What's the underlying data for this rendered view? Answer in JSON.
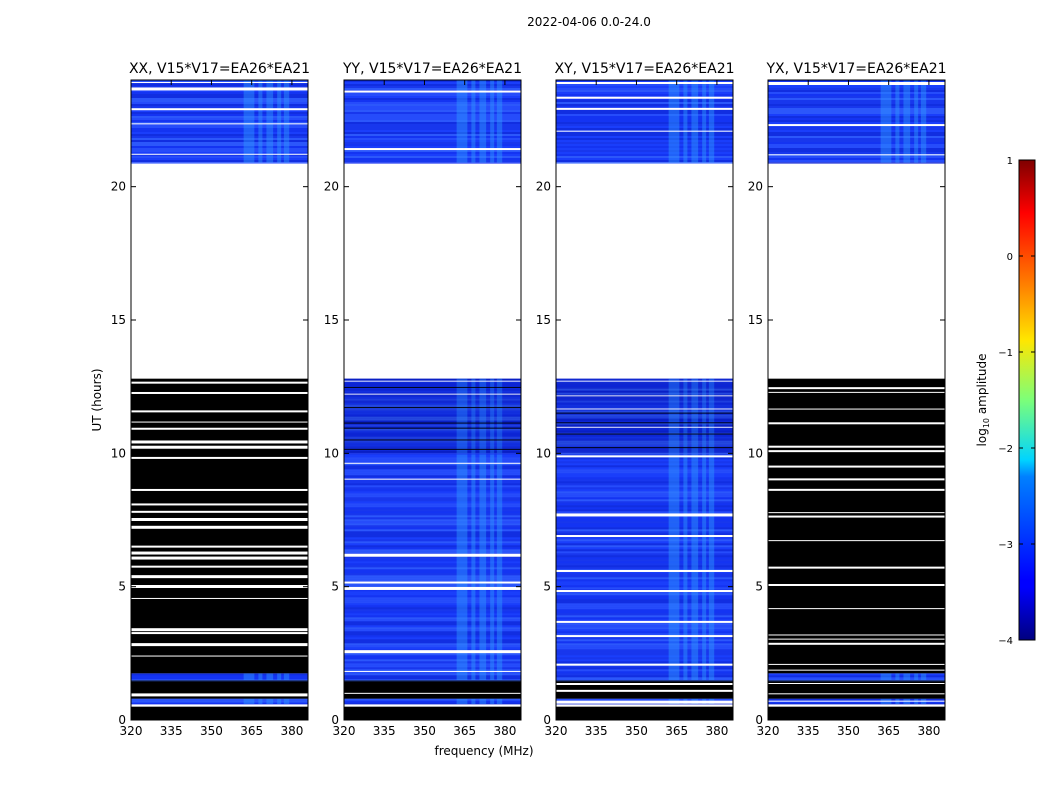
{
  "figure": {
    "suptitle": "2022-04-06 0.0-24.0",
    "xlabel": "frequency (MHz)",
    "ylabel": "UT (hours)"
  },
  "colorbar": {
    "label_prefix": "log",
    "label_sub": "10",
    "label_suffix": " amplitude",
    "ticks": [
      1,
      0,
      -1,
      -2,
      -3,
      -4
    ],
    "tick_labels": [
      "1",
      "0",
      "−1",
      "−2",
      "−3",
      "−4"
    ],
    "range": [
      -4,
      1
    ],
    "colormap": "jet"
  },
  "chart_data": {
    "type": "heatmap",
    "description": "dynamic spectra, log10 amplitude vs frequency and UT",
    "xlim": [
      320,
      386
    ],
    "ylim": [
      0,
      24
    ],
    "x_ticks": [
      320,
      335,
      350,
      365,
      380
    ],
    "x_tick_labels": [
      "320",
      "335",
      "350",
      "365",
      "380"
    ],
    "y_ticks": [
      0,
      5,
      10,
      15,
      20
    ],
    "y_tick_labels": [
      "0",
      "5",
      "10",
      "15",
      "20"
    ],
    "rfi_bands_mhz": [
      [
        362,
        366
      ],
      [
        367.5,
        369
      ],
      [
        370.5,
        373
      ],
      [
        374.5,
        376
      ],
      [
        377,
        379
      ]
    ],
    "missing_data": [
      [
        12.8,
        20.9
      ]
    ],
    "panels": [
      {
        "title": "XX, V15*V17=EA26*EA21",
        "data_segments": [
          [
            0.0,
            0.5,
            "flagged"
          ],
          [
            0.6,
            0.8,
            "noise"
          ],
          [
            0.8,
            1.5,
            "flagged"
          ],
          [
            1.5,
            1.75,
            "noise"
          ],
          [
            1.75,
            12.8,
            "flagged"
          ],
          [
            20.9,
            24.0,
            "noise"
          ]
        ]
      },
      {
        "title": "YY, V15*V17=EA26*EA21",
        "data_segments": [
          [
            0.0,
            0.5,
            "flagged"
          ],
          [
            0.6,
            0.8,
            "noise"
          ],
          [
            0.8,
            1.5,
            "flagged"
          ],
          [
            1.5,
            10.0,
            "noise"
          ],
          [
            10.0,
            12.8,
            "mixed"
          ],
          [
            20.9,
            24.0,
            "noise"
          ]
        ]
      },
      {
        "title": "XY, V15*V17=EA26*EA21",
        "data_segments": [
          [
            0.0,
            0.5,
            "flagged"
          ],
          [
            0.6,
            0.8,
            "noise"
          ],
          [
            0.8,
            1.5,
            "flagged"
          ],
          [
            1.5,
            10.0,
            "noise"
          ],
          [
            10.0,
            12.8,
            "mixed"
          ],
          [
            20.9,
            24.0,
            "noise"
          ]
        ]
      },
      {
        "title": "YX, V15*V17=EA26*EA21",
        "data_segments": [
          [
            0.0,
            0.5,
            "flagged"
          ],
          [
            0.6,
            0.8,
            "noise"
          ],
          [
            0.8,
            1.5,
            "flagged"
          ],
          [
            1.5,
            1.75,
            "noise"
          ],
          [
            1.75,
            12.8,
            "flagged"
          ],
          [
            20.9,
            24.0,
            "noise"
          ]
        ]
      }
    ]
  }
}
